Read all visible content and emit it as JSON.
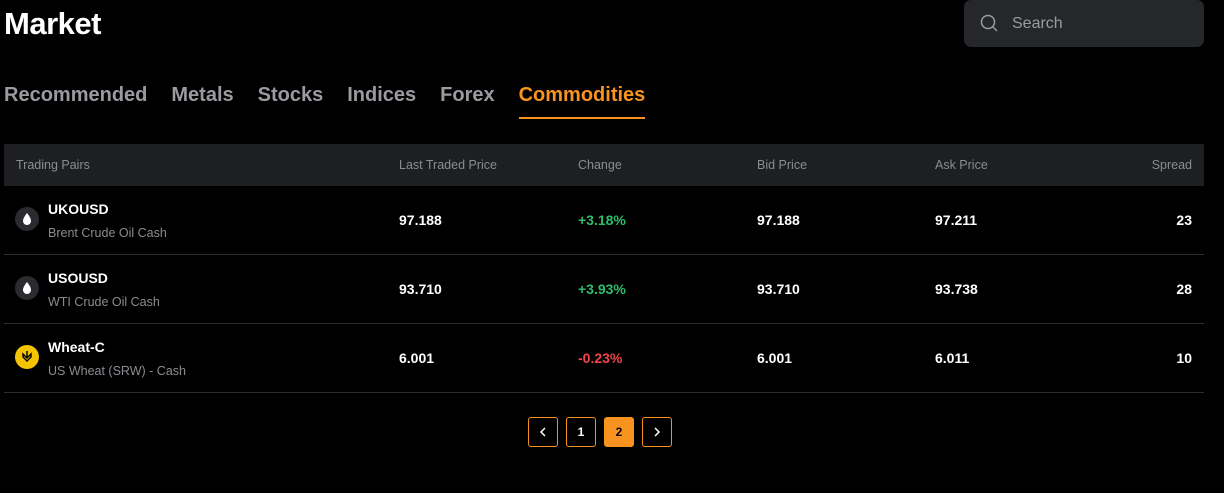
{
  "header": {
    "title": "Market",
    "search_placeholder": "Search"
  },
  "tabs": {
    "items": [
      "Recommended",
      "Metals",
      "Stocks",
      "Indices",
      "Forex",
      "Commodities"
    ],
    "active": 5
  },
  "table": {
    "columns": [
      "Trading Pairs",
      "Last Traded Price",
      "Change",
      "Bid Price",
      "Ask Price",
      "Spread"
    ],
    "rows": [
      {
        "symbol": "UKOUSD",
        "name": "Brent Crude Oil Cash",
        "last": "97.188",
        "change": "+3.18%",
        "bid": "97.188",
        "ask": "97.211",
        "spread": "23"
      },
      {
        "symbol": "USOUSD",
        "name": "WTI Crude Oil Cash",
        "last": "93.710",
        "change": "+3.93%",
        "bid": "93.710",
        "ask": "93.738",
        "spread": "28"
      },
      {
        "symbol": "Wheat-C",
        "name": "US Wheat (SRW) - Cash",
        "last": "6.001",
        "change": "-0.23%",
        "bid": "6.001",
        "ask": "6.011",
        "spread": "10"
      }
    ]
  },
  "pagination": {
    "pages": [
      "1",
      "2"
    ],
    "active": 1
  }
}
